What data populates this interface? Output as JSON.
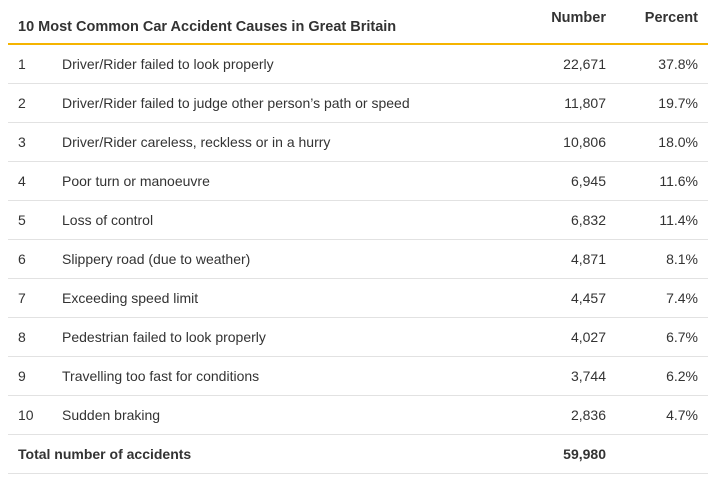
{
  "colors": {
    "header_rule": "#f5b400",
    "row_divider": "#e2e2e2",
    "text": "#333333"
  },
  "chart_data": {
    "type": "table",
    "title": "10 Most Common Car Accident Causes in Great Britain",
    "columns": [
      "Number",
      "Percent"
    ],
    "rows": [
      {
        "rank": "1",
        "cause": "Driver/Rider failed to look properly",
        "number": "22,671",
        "percent": "37.8%"
      },
      {
        "rank": "2",
        "cause": "Driver/Rider failed to judge other person’s path or speed",
        "number": "11,807",
        "percent": "19.7%"
      },
      {
        "rank": "3",
        "cause": "Driver/Rider careless, reckless or in a hurry",
        "number": "10,806",
        "percent": "18.0%"
      },
      {
        "rank": "4",
        "cause": "Poor turn or manoeuvre",
        "number": "6,945",
        "percent": "11.6%"
      },
      {
        "rank": "5",
        "cause": "Loss of control",
        "number": "6,832",
        "percent": "11.4%"
      },
      {
        "rank": "6",
        "cause": "Slippery road (due to weather)",
        "number": "4,871",
        "percent": "8.1%"
      },
      {
        "rank": "7",
        "cause": "Exceeding speed limit",
        "number": "4,457",
        "percent": "7.4%"
      },
      {
        "rank": "8",
        "cause": "Pedestrian failed to look properly",
        "number": "4,027",
        "percent": "6.7%"
      },
      {
        "rank": "9",
        "cause": "Travelling too fast for conditions",
        "number": "3,744",
        "percent": "6.2%"
      },
      {
        "rank": "10",
        "cause": "Sudden braking",
        "number": "2,836",
        "percent": "4.7%"
      }
    ],
    "total": {
      "label": "Total number of accidents",
      "number": "59,980"
    }
  }
}
